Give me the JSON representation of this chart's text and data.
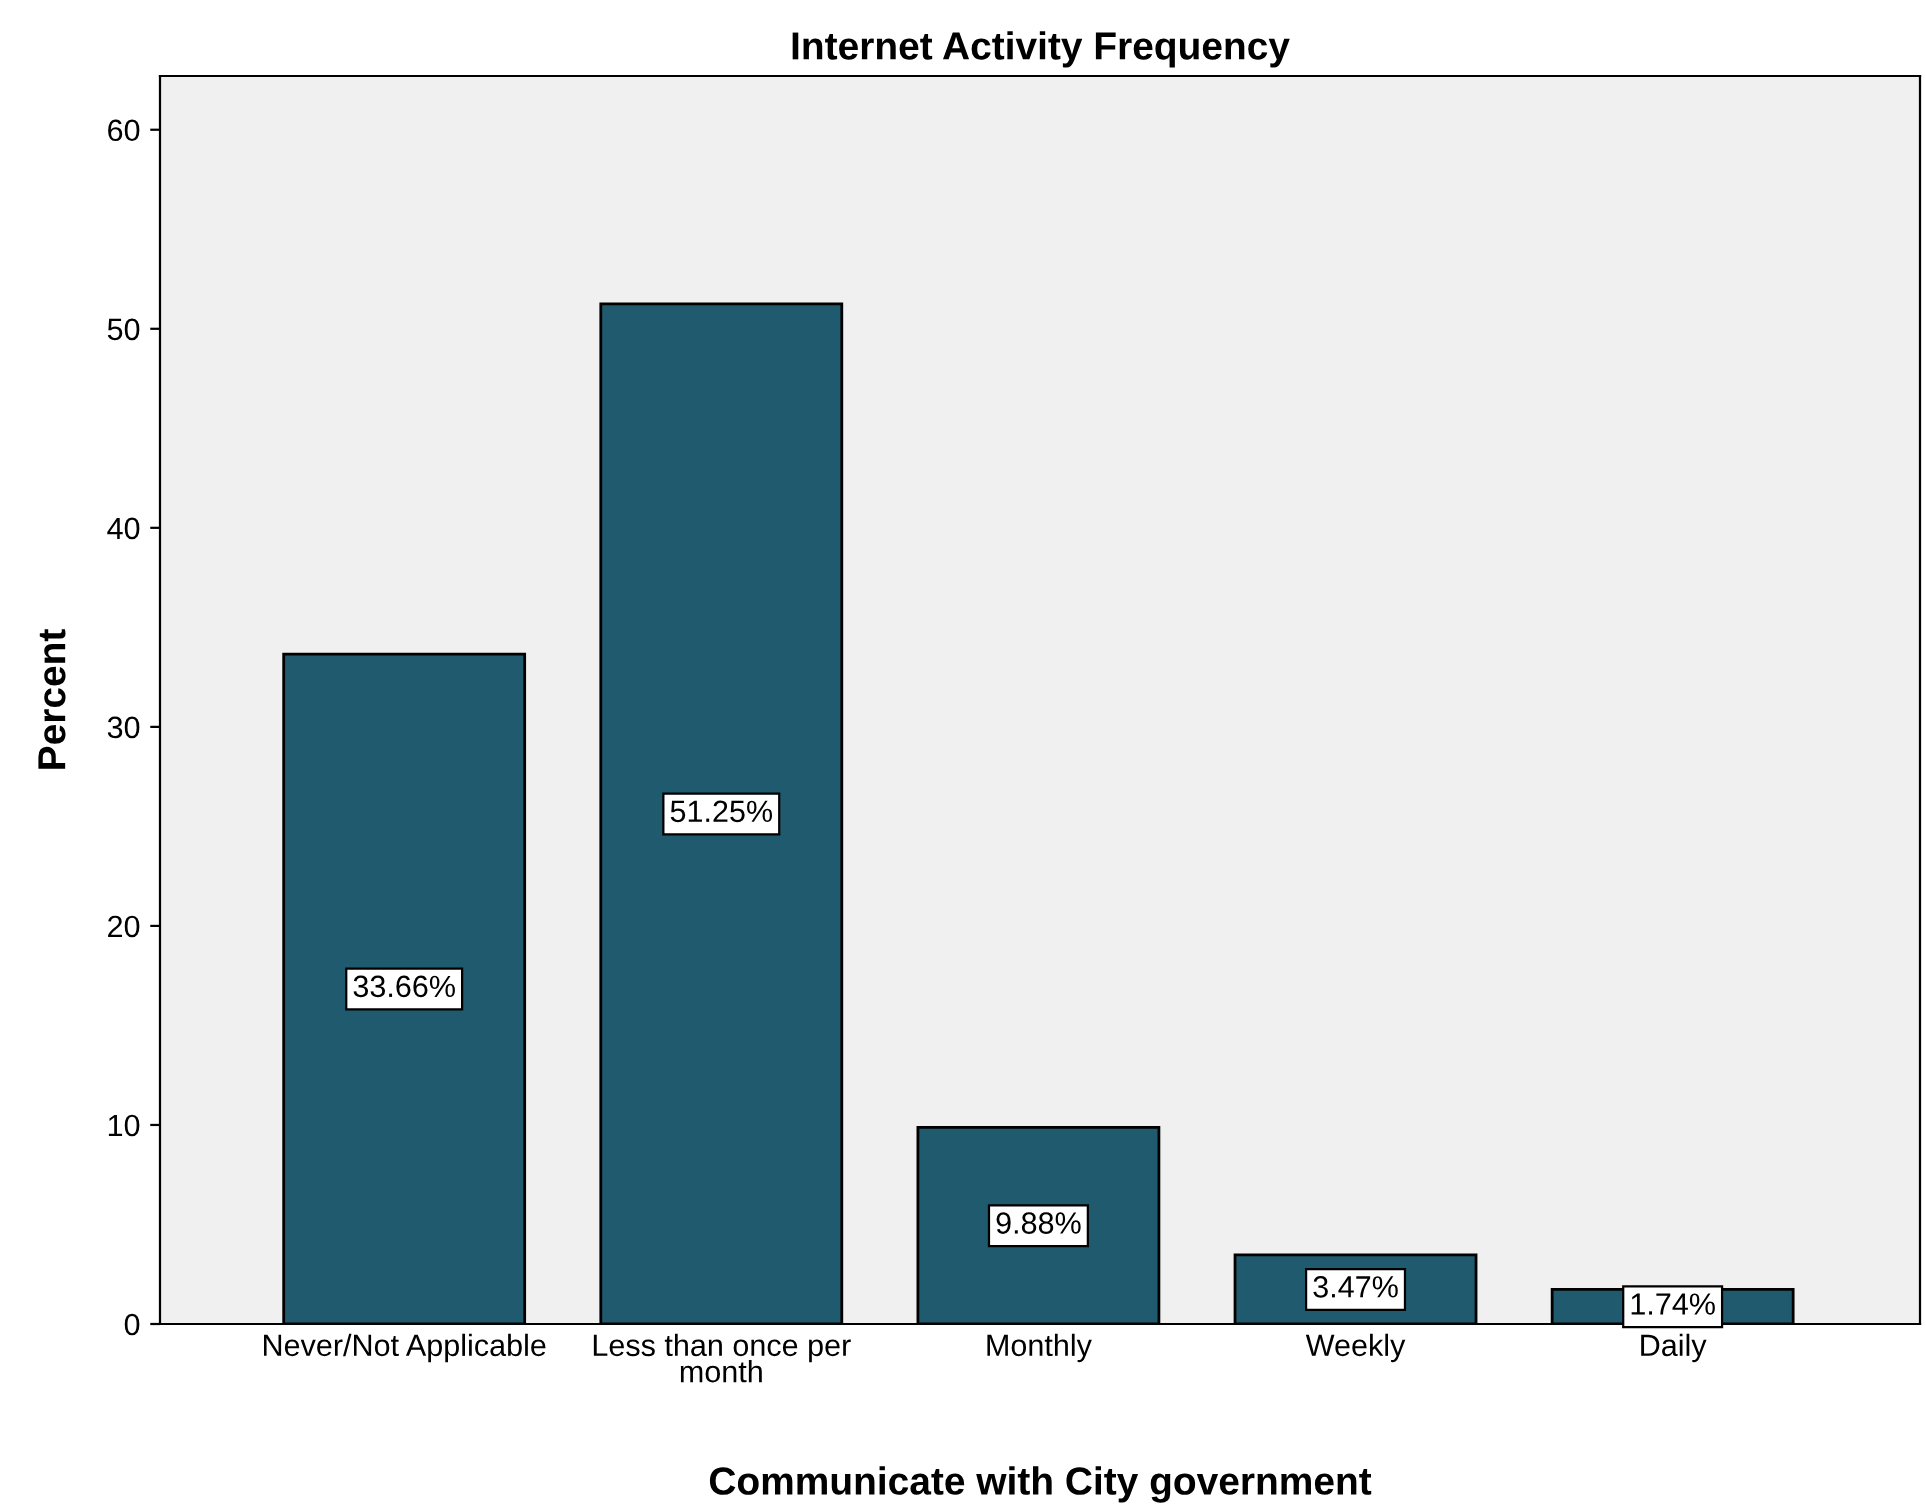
{
  "chart_data": {
    "type": "bar",
    "title": "Internet Activity Frequency",
    "xlabel": "Communicate with City government",
    "ylabel": "Percent",
    "categories": [
      "Never/Not Applicable",
      "Less than once per\nmonth",
      "Monthly",
      "Weekly",
      "Daily"
    ],
    "values": [
      33.66,
      51.25,
      9.88,
      3.47,
      1.74
    ],
    "value_labels": [
      "33.66%",
      "51.25%",
      "9.88%",
      "3.47%",
      "1.74%"
    ],
    "color": "#1f5a6e",
    "ylim": [
      0,
      62.7
    ],
    "yticks": [
      0,
      10,
      20,
      30,
      40,
      50,
      60
    ],
    "grid": false,
    "legend": false
  }
}
